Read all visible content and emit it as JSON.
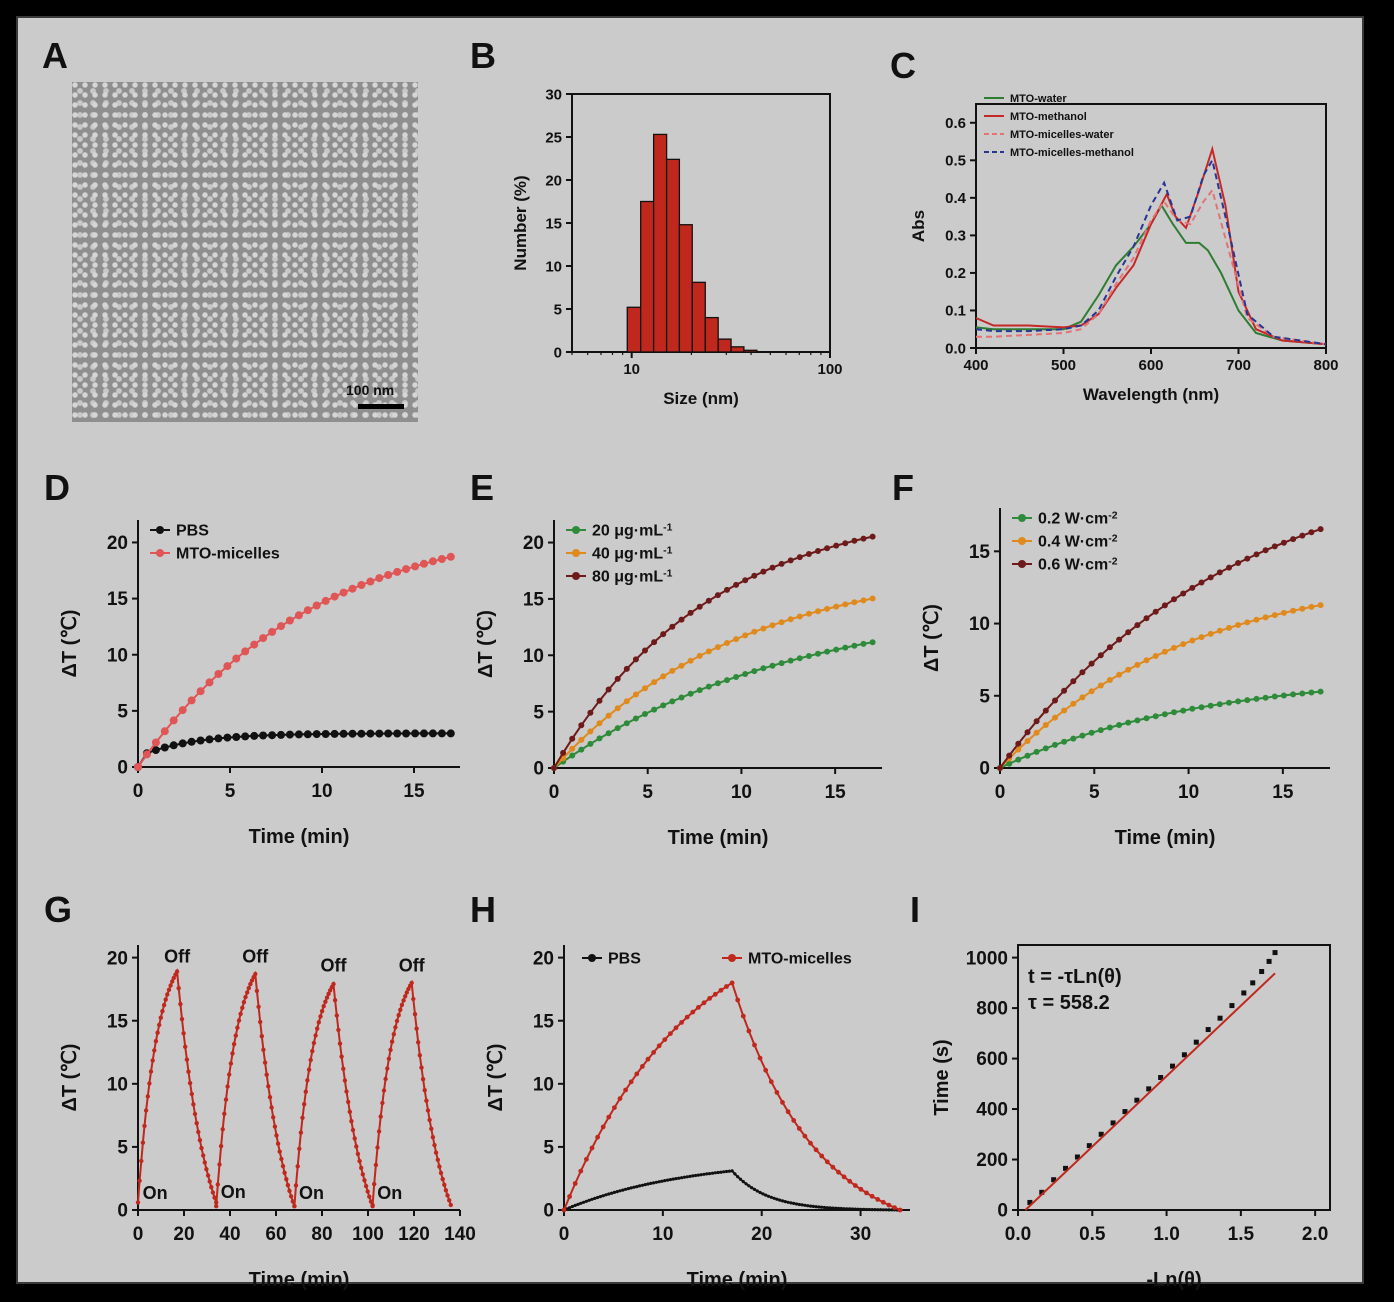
{
  "panel_letters": [
    "A",
    "B",
    "C",
    "D",
    "E",
    "F",
    "G",
    "H",
    "I"
  ],
  "panel_a": {
    "scale_bar_label": "100 nm"
  },
  "chart_data": [
    {
      "panel": "B",
      "type": "bar",
      "xlabel": "Size (nm)",
      "ylabel": "Number (%)",
      "xscale": "log",
      "xlim": [
        5,
        100
      ],
      "ylim": [
        0,
        30
      ],
      "xticks": [
        10,
        100
      ],
      "yticks": [
        0,
        5,
        10,
        15,
        20,
        25,
        30
      ],
      "bins": [
        [
          9.5,
          11.1
        ],
        [
          11.1,
          12.9
        ],
        [
          12.9,
          15.0
        ],
        [
          15.0,
          17.4
        ],
        [
          17.4,
          20.2
        ],
        [
          20.2,
          23.5
        ],
        [
          23.5,
          27.3
        ],
        [
          27.3,
          31.7
        ],
        [
          31.7,
          36.8
        ],
        [
          36.8,
          42.8
        ]
      ],
      "values": [
        5.2,
        17.5,
        25.3,
        22.4,
        14.8,
        8.1,
        4.0,
        1.5,
        0.6,
        0.2
      ],
      "color": "#c0281d"
    },
    {
      "panel": "C",
      "type": "line",
      "xlabel": "Wavelength (nm)",
      "ylabel": "Abs",
      "xlim": [
        400,
        800
      ],
      "ylim": [
        0,
        0.65
      ],
      "xticks": [
        400,
        500,
        600,
        700,
        800
      ],
      "yticks": [
        0.0,
        0.1,
        0.2,
        0.3,
        0.4,
        0.5,
        0.6
      ],
      "legend": "top-left",
      "series": [
        {
          "name": "MTO-water",
          "color": "#2e7d32",
          "dash": false,
          "x": [
            400,
            420,
            460,
            500,
            520,
            540,
            560,
            580,
            600,
            612,
            625,
            640,
            655,
            665,
            680,
            700,
            720,
            750,
            800
          ],
          "y": [
            0.055,
            0.05,
            0.05,
            0.05,
            0.07,
            0.14,
            0.22,
            0.27,
            0.33,
            0.38,
            0.33,
            0.28,
            0.28,
            0.26,
            0.2,
            0.1,
            0.04,
            0.02,
            0.01
          ]
        },
        {
          "name": "MTO-methanol",
          "color": "#c62828",
          "dash": false,
          "x": [
            400,
            420,
            460,
            500,
            520,
            540,
            560,
            580,
            600,
            618,
            628,
            640,
            655,
            670,
            685,
            700,
            720,
            750,
            800
          ],
          "y": [
            0.08,
            0.06,
            0.06,
            0.055,
            0.06,
            0.09,
            0.16,
            0.22,
            0.33,
            0.41,
            0.35,
            0.32,
            0.42,
            0.53,
            0.38,
            0.15,
            0.05,
            0.02,
            0.01
          ]
        },
        {
          "name": "MTO-micelles-water",
          "color": "#e57373",
          "dash": true,
          "x": [
            400,
            420,
            460,
            500,
            520,
            540,
            560,
            580,
            600,
            615,
            630,
            645,
            660,
            670,
            690,
            710,
            740,
            800
          ],
          "y": [
            0.03,
            0.03,
            0.035,
            0.04,
            0.05,
            0.09,
            0.17,
            0.24,
            0.34,
            0.39,
            0.34,
            0.33,
            0.39,
            0.42,
            0.25,
            0.08,
            0.03,
            0.01
          ]
        },
        {
          "name": "MTO-micelles-methanol",
          "color": "#283593",
          "dash": true,
          "x": [
            400,
            420,
            460,
            500,
            520,
            540,
            560,
            580,
            600,
            615,
            630,
            645,
            660,
            670,
            690,
            710,
            740,
            800
          ],
          "y": [
            0.05,
            0.045,
            0.045,
            0.05,
            0.06,
            0.1,
            0.19,
            0.27,
            0.38,
            0.44,
            0.34,
            0.35,
            0.46,
            0.5,
            0.3,
            0.09,
            0.03,
            0.01
          ]
        }
      ]
    },
    {
      "panel": "D",
      "type": "line",
      "xlabel": "Time (min)",
      "ylabel": "ΔT (℃)",
      "xlim": [
        0,
        17.5
      ],
      "ylim": [
        0,
        22
      ],
      "xticks": [
        0,
        5,
        10,
        15
      ],
      "yticks": [
        0,
        5,
        10,
        15,
        20
      ],
      "legend": "top-left",
      "markers": true,
      "series": [
        {
          "name": "PBS",
          "color": "#111111",
          "model": "sat",
          "plateau": 3.0,
          "k": 0.35,
          "offset": 0.9,
          "tmax": 17,
          "n": 35
        },
        {
          "name": "MTO-micelles",
          "color": "#e05555",
          "model": "sat",
          "plateau": 22.5,
          "k": 0.105,
          "offset": 0,
          "tmax": 17,
          "n": 35
        }
      ]
    },
    {
      "panel": "E",
      "type": "line",
      "xlabel": "Time (min)",
      "ylabel": "ΔT (℃)",
      "xlim": [
        0,
        17.5
      ],
      "ylim": [
        0,
        22
      ],
      "xticks": [
        0,
        5,
        10,
        15
      ],
      "yticks": [
        0,
        5,
        10,
        15,
        20
      ],
      "legend": "top-left",
      "markers": true,
      "series": [
        {
          "name": "20 μg·mL",
          "sup": "-1",
          "color": "#2e8b3a",
          "model": "sat",
          "plateau": 15.2,
          "k": 0.078,
          "offset": 0,
          "tmax": 17,
          "n": 35
        },
        {
          "name": "40 μg·mL",
          "sup": "-1",
          "color": "#e08a1e",
          "model": "sat",
          "plateau": 18.4,
          "k": 0.1,
          "offset": 0,
          "tmax": 17,
          "n": 35
        },
        {
          "name": "80 μg·mL",
          "sup": "-1",
          "color": "#6e1a1a",
          "model": "sat",
          "plateau": 23.6,
          "k": 0.12,
          "offset": 0,
          "tmax": 17,
          "n": 35
        }
      ]
    },
    {
      "panel": "F",
      "type": "line",
      "xlabel": "Time (min)",
      "ylabel": "ΔT (℃)",
      "xlim": [
        0,
        17.5
      ],
      "ylim": [
        0,
        18
      ],
      "xticks": [
        0,
        5,
        10,
        15
      ],
      "yticks": [
        0,
        5,
        10,
        15
      ],
      "legend": "top-left",
      "markers": true,
      "series": [
        {
          "name": "0.2 W·cm",
          "sup": "-2",
          "color": "#2e8b3a",
          "model": "sat",
          "plateau": 6.6,
          "k": 0.095,
          "offset": 0,
          "tmax": 17,
          "n": 35
        },
        {
          "name": "0.4 W·cm",
          "sup": "-2",
          "color": "#e08a1e",
          "model": "sat",
          "plateau": 13.8,
          "k": 0.1,
          "offset": 0,
          "tmax": 17,
          "n": 35
        },
        {
          "name": "0.6 W·cm",
          "sup": "-2",
          "color": "#6e1a1a",
          "model": "sat",
          "plateau": 22.0,
          "k": 0.082,
          "offset": 0,
          "tmax": 17,
          "n": 35
        }
      ]
    },
    {
      "panel": "G",
      "type": "line",
      "xlabel": "Time (min)",
      "ylabel": "ΔT (℃)",
      "xlim": [
        0,
        140
      ],
      "ylim": [
        0,
        21
      ],
      "xticks": [
        0,
        20,
        40,
        60,
        80,
        100,
        120,
        140
      ],
      "yticks": [
        0,
        5,
        10,
        15,
        20
      ],
      "markers": true,
      "cycles": [
        {
          "on": 0,
          "off": 17,
          "end": 34,
          "peak": 18.9,
          "min": 0.6
        },
        {
          "on": 34,
          "off": 51,
          "end": 68,
          "peak": 18.7,
          "min": 0.3
        },
        {
          "on": 68,
          "off": 85,
          "end": 102,
          "peak": 17.9,
          "min": 0.3
        },
        {
          "on": 102,
          "off": 119,
          "end": 136,
          "peak": 18.0,
          "min": 0.4
        }
      ],
      "color": "#c0281d",
      "annotations": [
        {
          "text": "Off",
          "x": 17,
          "y": 19.3
        },
        {
          "text": "Off",
          "x": 51,
          "y": 19.3
        },
        {
          "text": "Off",
          "x": 85,
          "y": 18.6
        },
        {
          "text": "Off",
          "x": 119,
          "y": 18.6
        },
        {
          "text": "On",
          "x": 2,
          "y": 0.7
        },
        {
          "text": "On",
          "x": 36,
          "y": 0.8
        },
        {
          "text": "On",
          "x": 70,
          "y": 0.7
        },
        {
          "text": "On",
          "x": 104,
          "y": 0.7
        }
      ]
    },
    {
      "panel": "H",
      "type": "line",
      "xlabel": "Time (min)",
      "ylabel": "ΔT (℃)",
      "xlim": [
        0,
        35
      ],
      "ylim": [
        0,
        21
      ],
      "xticks": [
        0,
        10,
        20,
        30
      ],
      "yticks": [
        0,
        5,
        10,
        15,
        20
      ],
      "legend": "top",
      "markers": true,
      "series": [
        {
          "name": "PBS",
          "color": "#111111",
          "heat_end": 17,
          "end": 34,
          "peak": 3.1,
          "k_heat": 0.08,
          "k_cool": 0.28,
          "n": 120
        },
        {
          "name": "MTO-micelles",
          "color": "#c0281d",
          "heat_end": 17,
          "end": 34,
          "peak": 18.0,
          "k_heat": 0.08,
          "k_cool": 0.12,
          "n": 60
        }
      ]
    },
    {
      "panel": "I",
      "type": "scatter",
      "xlabel": "-Ln(θ)",
      "ylabel": "Time (s)",
      "xlim": [
        0,
        2.1
      ],
      "ylim": [
        0,
        1050
      ],
      "xticks": [
        0.0,
        0.5,
        1.0,
        1.5,
        2.0
      ],
      "yticks": [
        0,
        200,
        400,
        600,
        800,
        1000
      ],
      "fit_text": [
        "t = -τLn(θ)",
        "τ = 558.2"
      ],
      "points_x": [
        0.08,
        0.16,
        0.24,
        0.32,
        0.4,
        0.48,
        0.56,
        0.64,
        0.72,
        0.8,
        0.88,
        0.96,
        1.04,
        1.12,
        1.2,
        1.28,
        1.36,
        1.44,
        1.52,
        1.58,
        1.64,
        1.69,
        1.73
      ],
      "points_y": [
        30,
        70,
        120,
        165,
        210,
        255,
        300,
        345,
        390,
        435,
        480,
        525,
        570,
        615,
        665,
        715,
        760,
        810,
        860,
        900,
        945,
        985,
        1020
      ],
      "fit": {
        "slope": 558.2,
        "x0": 0.05,
        "x1": 1.73,
        "color": "#c0281d"
      }
    }
  ]
}
